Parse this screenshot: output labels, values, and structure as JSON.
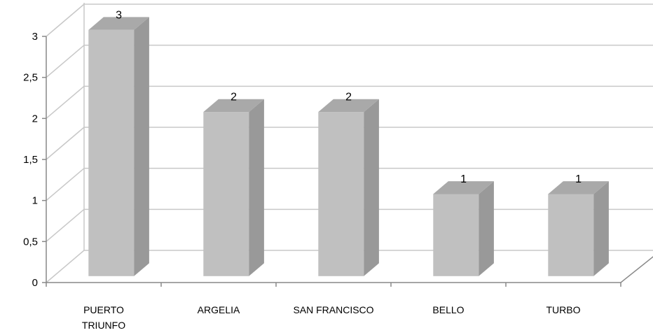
{
  "chart_data": {
    "type": "bar",
    "style": "3d-column",
    "categories": [
      "PUERTO TRIUNFO",
      "ARGELIA",
      "SAN FRANCISCO",
      "BELLO",
      "TURBO"
    ],
    "category_lines": [
      [
        "PUERTO",
        "TRIUNFO"
      ],
      [
        "ARGELIA"
      ],
      [
        "SAN FRANCISCO"
      ],
      [
        "BELLO"
      ],
      [
        "TURBO"
      ]
    ],
    "values": [
      3,
      2,
      2,
      1,
      1
    ],
    "data_labels": [
      "3",
      "2",
      "2",
      "1",
      "1"
    ],
    "ylim": [
      0,
      3
    ],
    "yticks": [
      0,
      0.5,
      1,
      1.5,
      2,
      2.5,
      3
    ],
    "ytick_labels": [
      "0",
      "0,5",
      "1",
      "1,5",
      "2",
      "2,5",
      "3"
    ],
    "grid": true,
    "legend": "none",
    "title": "",
    "xlabel": "",
    "ylabel": ""
  },
  "colors": {
    "bar_front": "#c0c0c0",
    "bar_side": "#999999",
    "bar_top": "#a9a9a9",
    "grid": "#c8c8c8",
    "axis": "#888888"
  }
}
